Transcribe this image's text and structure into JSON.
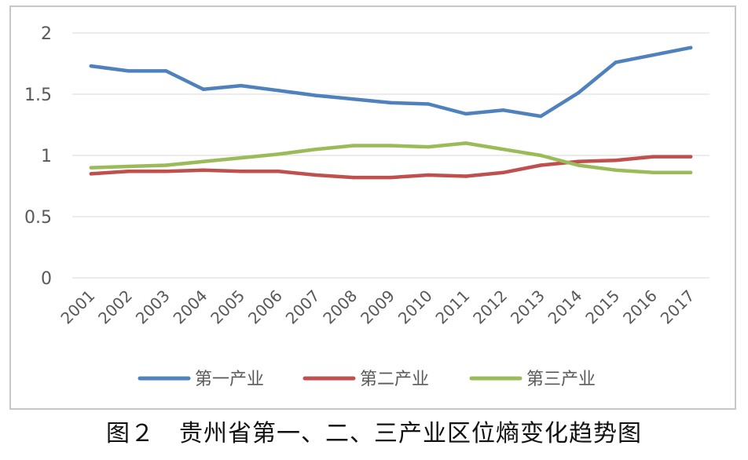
{
  "caption": "图２　贵州省第一、二、三产业区位熵变化趋势图",
  "chart_data": {
    "type": "line",
    "title": "",
    "xlabel": "",
    "ylabel": "",
    "categories": [
      "2001",
      "2002",
      "2003",
      "2004",
      "2005",
      "2006",
      "2007",
      "2008",
      "2009",
      "2010",
      "2011",
      "2012",
      "2013",
      "2014",
      "2015",
      "2016",
      "2017"
    ],
    "ylim": [
      0,
      2
    ],
    "yticks": [
      "0",
      "0.5",
      "1",
      "1.5",
      "2"
    ],
    "grid": true,
    "legend_position": "bottom",
    "series": [
      {
        "name": "第一产业",
        "color": "#4f81bd",
        "values": [
          1.73,
          1.69,
          1.69,
          1.54,
          1.57,
          1.53,
          1.49,
          1.46,
          1.43,
          1.42,
          1.34,
          1.37,
          1.32,
          1.51,
          1.76,
          1.82,
          1.88
        ]
      },
      {
        "name": "第二产业",
        "color": "#c0504d",
        "values": [
          0.85,
          0.87,
          0.87,
          0.88,
          0.87,
          0.87,
          0.84,
          0.82,
          0.82,
          0.84,
          0.83,
          0.86,
          0.92,
          0.95,
          0.96,
          0.99,
          0.99
        ]
      },
      {
        "name": "第三产业",
        "color": "#9bbb59",
        "values": [
          0.9,
          0.91,
          0.92,
          0.95,
          0.98,
          1.01,
          1.05,
          1.08,
          1.08,
          1.07,
          1.1,
          1.05,
          1.0,
          0.92,
          0.88,
          0.86,
          0.86
        ]
      }
    ]
  }
}
